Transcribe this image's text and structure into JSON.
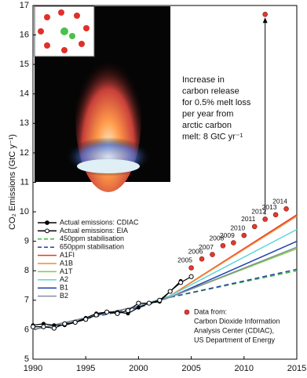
{
  "chart_data": {
    "type": "line",
    "y_label": "CO₂ Emissions (GtC y⁻¹)",
    "xlim": [
      1990,
      2015
    ],
    "ylim": [
      5,
      17
    ],
    "xticks": [
      1990,
      1995,
      2000,
      2005,
      2010,
      2015
    ],
    "yticks": [
      5,
      6,
      7,
      8,
      9,
      10,
      11,
      12,
      13,
      14,
      15,
      16,
      17
    ],
    "series": [
      {
        "name": "Actual emissions: CDIAC",
        "color": "#000000",
        "marker": "filled",
        "dash": false,
        "x": [
          1990,
          1991,
          1992,
          1993,
          1994,
          1995,
          1996,
          1997,
          1998,
          1999,
          2000,
          2001,
          2002,
          2003,
          2004
        ],
        "values": [
          6.15,
          6.2,
          6.15,
          6.15,
          6.25,
          6.4,
          6.55,
          6.6,
          6.6,
          6.55,
          6.75,
          6.9,
          6.95,
          7.3,
          7.65
        ]
      },
      {
        "name": "Actual emissions: EIA",
        "color": "#000000",
        "marker": "open",
        "dash": false,
        "x": [
          1990,
          1991,
          1992,
          1993,
          1994,
          1995,
          1996,
          1997,
          1998,
          1999,
          2000,
          2001,
          2002,
          2003,
          2004,
          2005
        ],
        "values": [
          6.1,
          6.1,
          6.05,
          6.2,
          6.25,
          6.35,
          6.5,
          6.6,
          6.55,
          6.65,
          6.9,
          6.9,
          7.0,
          7.3,
          7.6,
          7.8
        ]
      },
      {
        "name": "450ppm stabilisation",
        "color": "#3fba3f",
        "dash": true,
        "x": [
          1990,
          2000,
          2003,
          2015
        ],
        "values": [
          6.0,
          6.75,
          7.1,
          8.0
        ]
      },
      {
        "name": "650ppm stabilisation",
        "color": "#2a3fa0",
        "dash": true,
        "x": [
          1990,
          2000,
          2003,
          2015
        ],
        "values": [
          6.0,
          6.75,
          7.1,
          8.05
        ]
      },
      {
        "name": "A1FI",
        "color": "#e8372a",
        "dash": false,
        "x": [
          1990,
          2000,
          2003,
          2015
        ],
        "values": [
          6.0,
          6.8,
          7.15,
          9.9
        ]
      },
      {
        "name": "A1B",
        "color": "#f28a2e",
        "dash": false,
        "x": [
          1990,
          2000,
          2003,
          2015
        ],
        "values": [
          6.0,
          6.8,
          7.15,
          9.85
        ]
      },
      {
        "name": "A1T",
        "color": "#7dcf3c",
        "dash": false,
        "x": [
          1990,
          2000,
          2003,
          2015
        ],
        "values": [
          6.0,
          6.8,
          7.1,
          8.75
        ]
      },
      {
        "name": "A2",
        "color": "#5fd6d6",
        "dash": false,
        "x": [
          1990,
          2000,
          2003,
          2015
        ],
        "values": [
          6.0,
          6.8,
          7.15,
          9.4
        ]
      },
      {
        "name": "B1",
        "color": "#2040b0",
        "dash": false,
        "x": [
          1990,
          2000,
          2003,
          2015
        ],
        "values": [
          6.0,
          6.8,
          7.1,
          9.0
        ]
      },
      {
        "name": "B2",
        "color": "#8090a0",
        "dash": false,
        "x": [
          1990,
          2000,
          2003,
          2015
        ],
        "values": [
          6.0,
          6.8,
          7.1,
          8.8
        ]
      }
    ],
    "points": {
      "color": "#e03a2f",
      "x": [
        2005,
        2006,
        2007,
        2008,
        2009,
        2010,
        2011,
        2012,
        2013,
        2014
      ],
      "values": [
        8.1,
        8.4,
        8.55,
        8.85,
        8.95,
        9.2,
        9.5,
        9.75,
        9.9,
        10.1
      ]
    },
    "melt_point": {
      "x": 2012,
      "value": 16.7
    },
    "annotation": [
      "Increase in",
      "carbon release",
      "for 0.5% melt loss",
      "per year from",
      "arctic carbon",
      "melt: 8 GtC yr⁻¹"
    ],
    "source_note": [
      "Data from:",
      "Carbon Dioxide Information",
      "Analysis Center (CDIAC),",
      "US Department of Energy"
    ]
  }
}
